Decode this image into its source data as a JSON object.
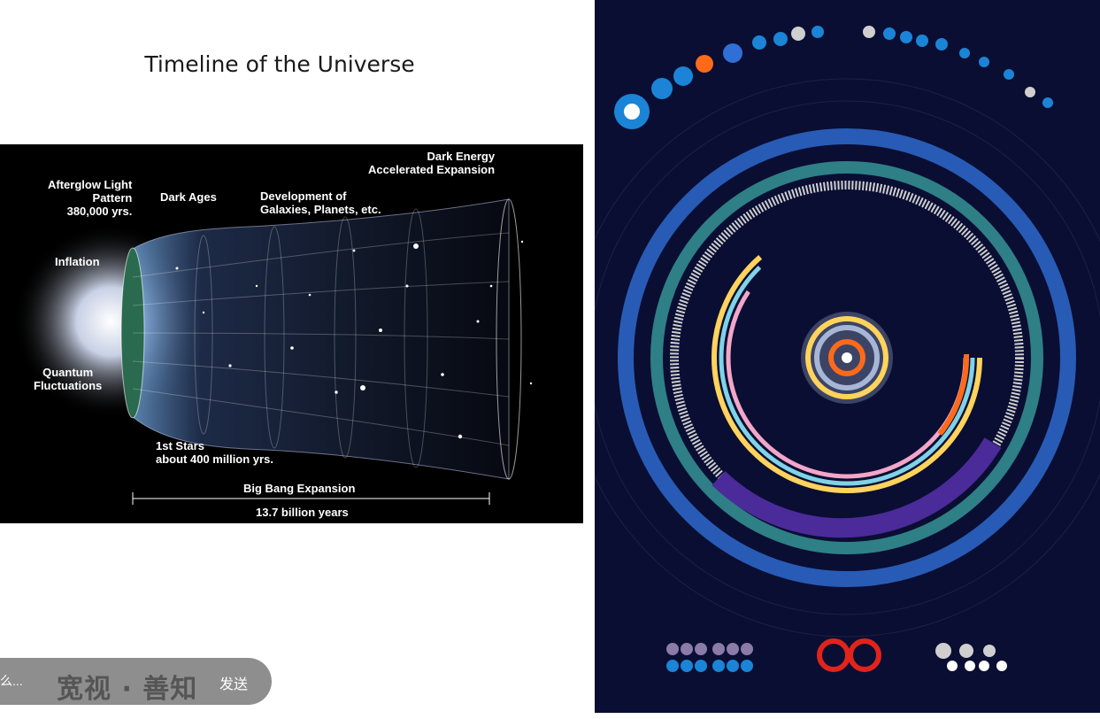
{
  "slide": {
    "title": "Timeline of the Universe"
  },
  "universe_diagram": {
    "labels": {
      "afterglow": "Afterglow Light\nPattern\n380,000 yrs.",
      "dark_ages": "Dark Ages",
      "development": "Development of\nGalaxies, Planets, etc.",
      "dark_energy": "Dark Energy\nAccelerated Expansion",
      "inflation": "Inflation",
      "quantum": "Quantum\nFluctuations",
      "first_stars": "1st Stars\nabout 400 million yrs.",
      "big_bang": "Big Bang Expansion",
      "age": "13.7 billion years"
    }
  },
  "poster": {
    "colors": {
      "background": "#0a0e33",
      "teal": "#2f7f86",
      "blue": "#2f6fd6",
      "purple": "#4b2a9a",
      "orange": "#ff6a1a",
      "yellow": "#ffd35c",
      "red": "#e0241b"
    }
  },
  "chat_bar": {
    "input_text": "么...",
    "logo": "宽视 · 善知",
    "send_label": "发送"
  }
}
